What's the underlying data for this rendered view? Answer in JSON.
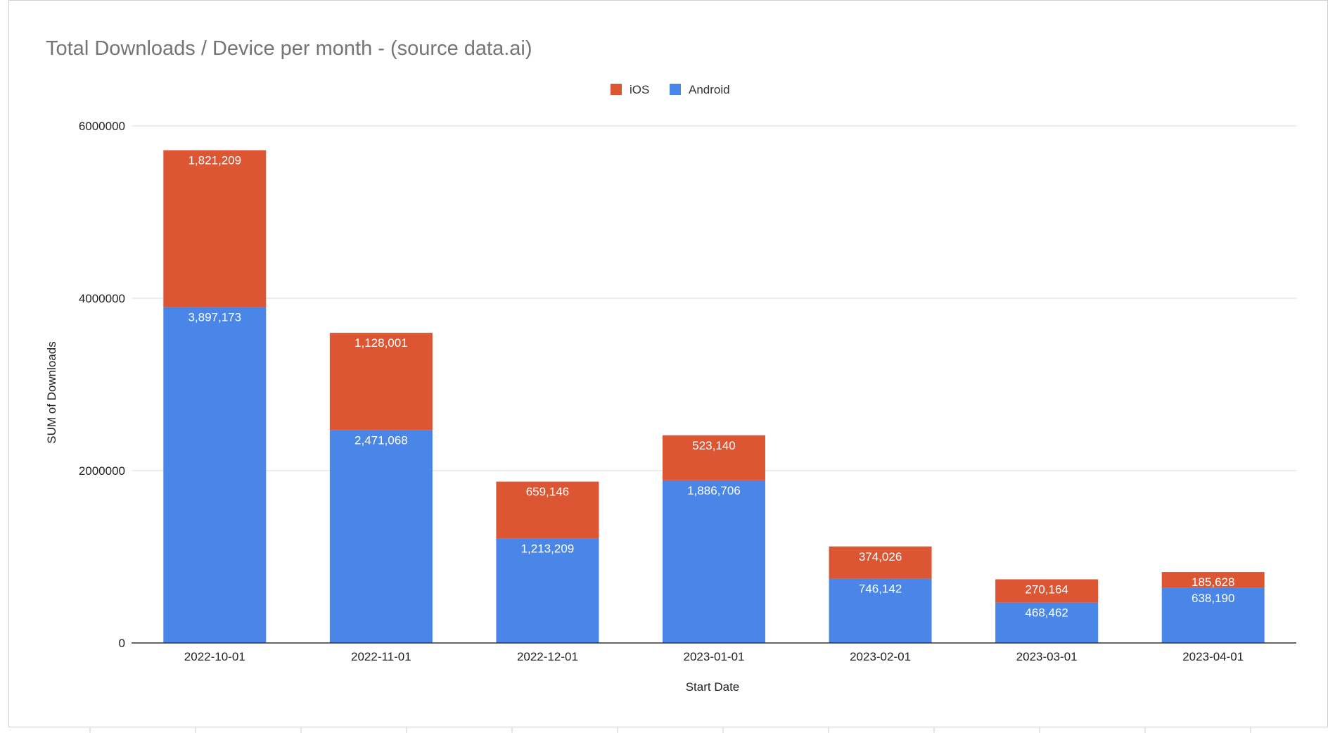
{
  "chart_data": {
    "type": "bar",
    "stacked": true,
    "title": "Total Downloads / Device per month - (source data.ai)",
    "xlabel": "Start Date",
    "ylabel": "SUM of Downloads",
    "ylim": [
      0,
      6000000
    ],
    "yticks": [
      "0",
      "2000000",
      "4000000",
      "6000000"
    ],
    "grid": true,
    "legend_position": "top",
    "categories": [
      "2022-10-01",
      "2022-11-01",
      "2022-12-01",
      "2023-01-01",
      "2023-02-01",
      "2023-03-01",
      "2023-04-01"
    ],
    "series": [
      {
        "name": "Android",
        "color": "#4a86e8",
        "values": [
          3897173,
          2471068,
          1213209,
          1886706,
          746142,
          468462,
          638190
        ],
        "labels": [
          "3,897,173",
          "2,471,068",
          "1,213,209",
          "1,886,706",
          "746,142",
          "468,462",
          "638,190"
        ]
      },
      {
        "name": "iOS",
        "color": "#dc5634",
        "values": [
          1821209,
          1128001,
          659146,
          523140,
          374026,
          270164,
          185628
        ],
        "labels": [
          "1,821,209",
          "1,128,001",
          "659,146",
          "523,140",
          "374,026",
          "270,164",
          "185,628"
        ]
      }
    ],
    "legend_order": [
      "iOS",
      "Android"
    ]
  }
}
